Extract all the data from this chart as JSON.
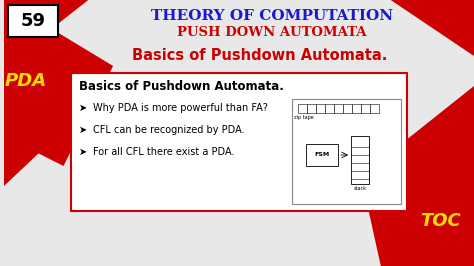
{
  "bg_color": "#e8e8e8",
  "title1": "THEORY OF COMPUTATION",
  "title2": "PUSH DOWN AUTOMATA",
  "subtitle": "Basics of Pushdown Automata.",
  "title1_color": "#1a1acc",
  "title2_color": "#cc0000",
  "subtitle_color": "#cc0000",
  "number": "59",
  "left_label": "PDA",
  "right_label": "TOC",
  "label_color": "#ffdd00",
  "box_title": "Basics of Pushdown Automata.",
  "bullets": [
    "Why PDA is more powerful than FA?",
    "CFL can be recognized by PDA.",
    "For all CFL there exist a PDA."
  ],
  "box_border_color": "#cc0000",
  "box_bg": "#ffffff",
  "red_color": "#cc0000"
}
